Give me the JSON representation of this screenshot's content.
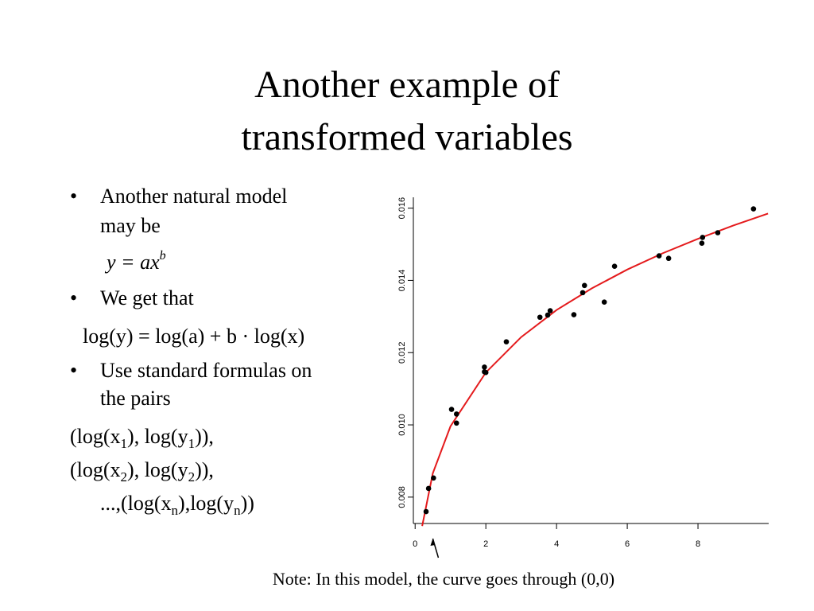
{
  "slide": {
    "title": [
      "Another example of",
      "transformed variables"
    ],
    "bullets": [
      [
        "Another natural model",
        "may be"
      ],
      [
        "We get that"
      ],
      [
        "Use standard formulas on",
        "the pairs"
      ]
    ],
    "formula1": {
      "base": "y = ax",
      "sup": "b"
    },
    "formula2": "log(y) = log(a) + b · log(x)",
    "pairs": [
      [
        "(log(x",
        "1",
        "), log(y",
        "1",
        ")),"
      ],
      [
        "(log(x",
        "2",
        "), log(y",
        "2",
        ")),"
      ],
      [
        "...,(log(x",
        "n",
        "),log(y",
        "n",
        "))"
      ]
    ],
    "note": "Note: In this model, the curve goes through (0,0)"
  },
  "chart_data": {
    "type": "scatter",
    "points": {
      "color": "#000000",
      "x": [
        0.31,
        0.38,
        0.52,
        1.03,
        1.17,
        1.17,
        1.96,
        1.96,
        2.0,
        2.58,
        3.53,
        3.75,
        3.82,
        4.49,
        4.74,
        4.79,
        5.35,
        5.64,
        6.9,
        7.17,
        8.11,
        8.13,
        8.56,
        9.57
      ],
      "values": [
        0.0076,
        0.00824,
        0.00853,
        0.01043,
        0.0103,
        0.01005,
        0.0116,
        0.01147,
        0.01145,
        0.0123,
        0.01298,
        0.01304,
        0.01316,
        0.01305,
        0.01366,
        0.01386,
        0.0134,
        0.01439,
        0.01468,
        0.01461,
        0.01503,
        0.01519,
        0.01532,
        0.01598
      ]
    },
    "fit": {
      "color": "#e41a1c",
      "x": [
        0.2,
        0.5,
        1,
        2,
        3,
        4,
        5,
        6,
        7,
        8,
        9,
        9.98
      ],
      "values": [
        0.0072,
        0.00866,
        0.00996,
        0.01145,
        0.01243,
        0.01318,
        0.01378,
        0.0143,
        0.01475,
        0.01515,
        0.01552,
        0.01585
      ]
    },
    "xlim": [
      -0.05,
      10
    ],
    "ylim": [
      0.00727,
      0.0163
    ],
    "xticks": [
      0,
      2,
      4,
      6,
      8
    ],
    "yticks": [
      0.008,
      {
        "value": 0.01,
        "label": "0.010"
      },
      0.012,
      0.014,
      0.016
    ],
    "arrow_x": 0.5
  }
}
